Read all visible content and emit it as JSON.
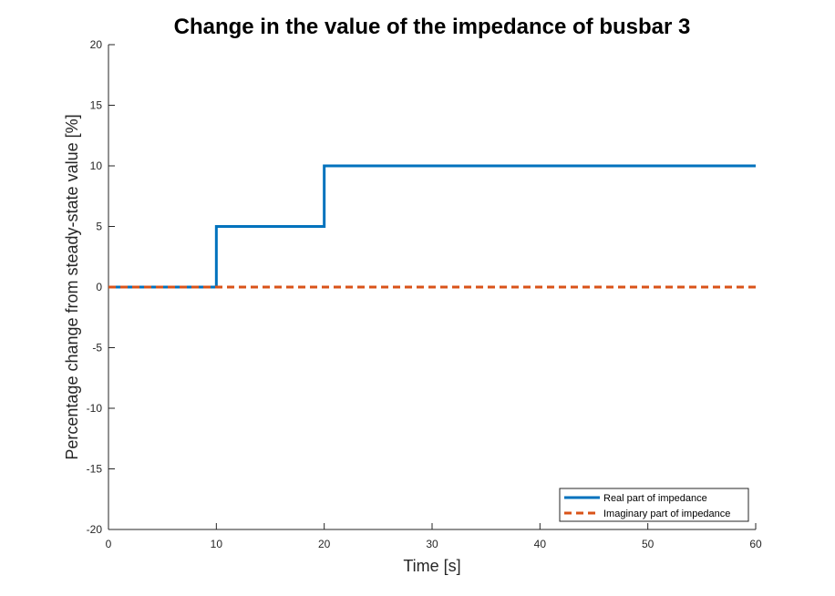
{
  "chart_data": {
    "type": "line",
    "title": "Change in the value of the impedance of busbar 3",
    "xlabel": "Time [s]",
    "ylabel": "Percentage change from steady-state value [%]",
    "xlim": [
      0,
      60
    ],
    "ylim": [
      -20,
      20
    ],
    "xticks": [
      0,
      10,
      20,
      30,
      40,
      50,
      60
    ],
    "yticks": [
      -20,
      -15,
      -10,
      -5,
      0,
      5,
      10,
      15,
      20
    ],
    "grid": false,
    "legend_location": "bottom-right",
    "series": [
      {
        "name": "Real part of impedance",
        "color": "#0072BD",
        "style": "solid",
        "x": [
          0,
          10,
          10,
          20,
          20,
          60
        ],
        "y": [
          0,
          0,
          5,
          5,
          10,
          10
        ]
      },
      {
        "name": "Imaginary part of impedance",
        "color": "#D95319",
        "style": "dashed",
        "x": [
          0,
          60
        ],
        "y": [
          0,
          0
        ]
      }
    ]
  }
}
